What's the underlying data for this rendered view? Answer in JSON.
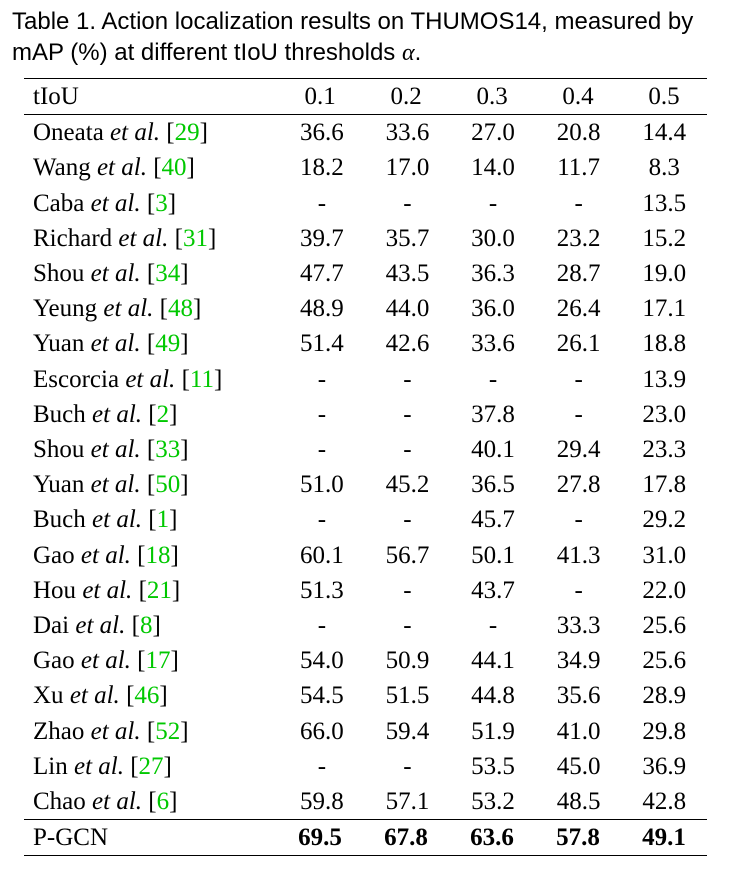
{
  "caption": {
    "line1": "Table 1. Action localization results on THUMOS14, measured by",
    "line2_prefix": "mAP (%) at different tIoU thresholds ",
    "line2_symbol": "α",
    "line2_suffix": "."
  },
  "table": {
    "header": {
      "label": "tIoU",
      "thresholds": [
        "0.1",
        "0.2",
        "0.3",
        "0.4",
        "0.5"
      ]
    },
    "rows": [
      {
        "author": "Oneata",
        "etal": "et al.",
        "cite": "29",
        "values": [
          "36.6",
          "33.6",
          "27.0",
          "20.8",
          "14.4"
        ]
      },
      {
        "author": "Wang",
        "etal": "et al.",
        "cite": "40",
        "values": [
          "18.2",
          "17.0",
          "14.0",
          "11.7",
          "8.3"
        ]
      },
      {
        "author": "Caba",
        "etal": "et al.",
        "cite": "3",
        "values": [
          "-",
          "-",
          "-",
          "-",
          "13.5"
        ]
      },
      {
        "author": "Richard",
        "etal": "et al.",
        "cite": "31",
        "values": [
          "39.7",
          "35.7",
          "30.0",
          "23.2",
          "15.2"
        ]
      },
      {
        "author": "Shou",
        "etal": "et al.",
        "cite": "34",
        "values": [
          "47.7",
          "43.5",
          "36.3",
          "28.7",
          "19.0"
        ]
      },
      {
        "author": "Yeung",
        "etal": "et al.",
        "cite": "48",
        "values": [
          "48.9",
          "44.0",
          "36.0",
          "26.4",
          "17.1"
        ]
      },
      {
        "author": "Yuan",
        "etal": "et al.",
        "cite": "49",
        "values": [
          "51.4",
          "42.6",
          "33.6",
          "26.1",
          "18.8"
        ]
      },
      {
        "author": "Escorcia",
        "etal": "et al.",
        "cite": "11",
        "values": [
          "-",
          "-",
          "-",
          "-",
          "13.9"
        ]
      },
      {
        "author": "Buch",
        "etal": "et al.",
        "cite": "2",
        "values": [
          "-",
          "-",
          "37.8",
          "-",
          "23.0"
        ]
      },
      {
        "author": "Shou",
        "etal": "et al.",
        "cite": "33",
        "values": [
          "-",
          "-",
          "40.1",
          "29.4",
          "23.3"
        ]
      },
      {
        "author": "Yuan",
        "etal": "et al.",
        "cite": "50",
        "values": [
          "51.0",
          "45.2",
          "36.5",
          "27.8",
          "17.8"
        ]
      },
      {
        "author": "Buch",
        "etal": "et al.",
        "cite": "1",
        "values": [
          "-",
          "-",
          "45.7",
          "-",
          "29.2"
        ]
      },
      {
        "author": "Gao",
        "etal": "et al.",
        "cite": "18",
        "values": [
          "60.1",
          "56.7",
          "50.1",
          "41.3",
          "31.0"
        ]
      },
      {
        "author": "Hou",
        "etal": "et al.",
        "cite": "21",
        "values": [
          "51.3",
          "-",
          "43.7",
          "-",
          "22.0"
        ]
      },
      {
        "author": "Dai",
        "etal": "et al.",
        "cite": "8",
        "values": [
          "-",
          "-",
          "-",
          "33.3",
          "25.6"
        ]
      },
      {
        "author": "Gao",
        "etal": "et al.",
        "cite": "17",
        "values": [
          "54.0",
          "50.9",
          "44.1",
          "34.9",
          "25.6"
        ]
      },
      {
        "author": "Xu",
        "etal": "et al.",
        "cite": "46",
        "values": [
          "54.5",
          "51.5",
          "44.8",
          "35.6",
          "28.9"
        ]
      },
      {
        "author": "Zhao",
        "etal": "et al.",
        "cite": "52",
        "values": [
          "66.0",
          "59.4",
          "51.9",
          "41.0",
          "29.8"
        ]
      },
      {
        "author": "Lin",
        "etal": "et al.",
        "cite": "27",
        "values": [
          "-",
          "-",
          "53.5",
          "45.0",
          "36.9"
        ]
      },
      {
        "author": "Chao",
        "etal": "et al.",
        "cite": "6",
        "values": [
          "59.8",
          "57.1",
          "53.2",
          "48.5",
          "42.8"
        ]
      }
    ],
    "ours": {
      "name": "P-GCN",
      "values": [
        "69.5",
        "67.8",
        "63.6",
        "57.8",
        "49.1"
      ]
    }
  },
  "colors": {
    "citation": "#00c800",
    "text": "#000000"
  }
}
